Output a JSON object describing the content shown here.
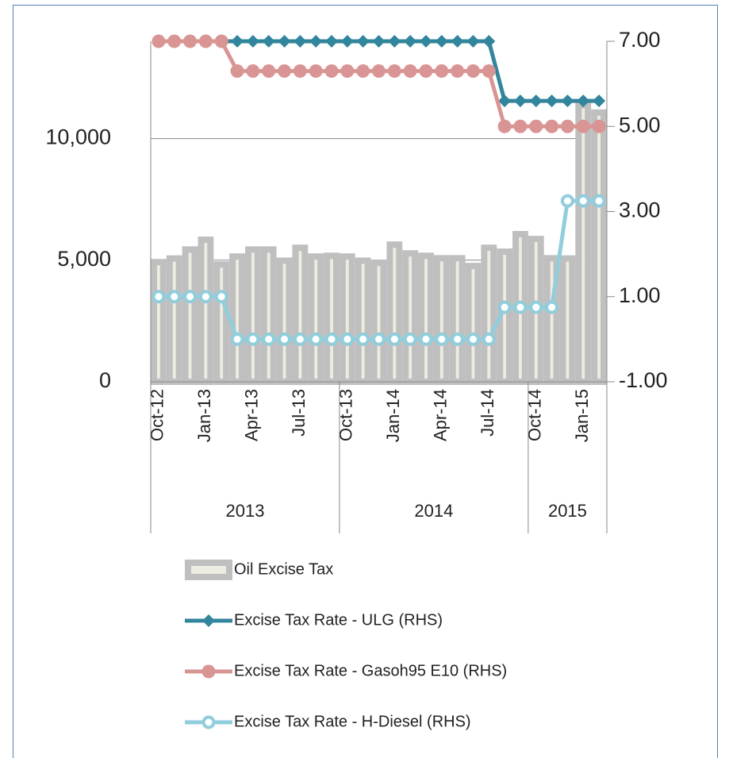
{
  "chart_data": {
    "type": "bar",
    "categories": [
      "Oct-12",
      null,
      null,
      "Jan-13",
      null,
      null,
      "Apr-13",
      null,
      null,
      "Jul-13",
      null,
      null,
      "Oct-13",
      null,
      null,
      "Jan-14",
      null,
      null,
      "Apr-14",
      null,
      null,
      "Jul-14",
      null,
      null,
      "Oct-14",
      null,
      null,
      "Jan-15",
      null
    ],
    "groups": [
      {
        "label": "2013",
        "count": 12
      },
      {
        "label": "2014",
        "count": 12
      },
      {
        "label": "2015",
        "count": 5
      }
    ],
    "series": [
      {
        "name": "Oil Excise Tax",
        "type": "bar",
        "color": "#bfbfbf",
        "fill": "#eeece1",
        "values": [
          5050,
          5200,
          5570,
          5970,
          4950,
          5280,
          5570,
          5570,
          5110,
          5640,
          5280,
          5310,
          5280,
          5110,
          5020,
          5770,
          5410,
          5310,
          5210,
          5210,
          4890,
          5640,
          5480,
          6200,
          6000,
          5210,
          5200,
          11500,
          11200
        ]
      },
      {
        "name": "Excise Tax Rate - ULG (RHS)",
        "type": "line",
        "axis": "y2",
        "color": "#31859c",
        "marker": "diamond",
        "values": [
          7,
          7,
          7,
          7,
          7,
          7,
          7,
          7,
          7,
          7,
          7,
          7,
          7,
          7,
          7,
          7,
          7,
          7,
          7,
          7,
          7,
          7,
          5.6,
          5.6,
          5.6,
          5.6,
          5.6,
          5.6,
          5.6
        ]
      },
      {
        "name": "Excise Tax Rate - Gasoh95 E10 (RHS)",
        "type": "line",
        "axis": "y2",
        "color": "#d99594",
        "marker": "circle",
        "values": [
          7,
          7,
          7,
          7,
          7,
          6.3,
          6.3,
          6.3,
          6.3,
          6.3,
          6.3,
          6.3,
          6.3,
          6.3,
          6.3,
          6.3,
          6.3,
          6.3,
          6.3,
          6.3,
          6.3,
          6.3,
          5.0,
          5.0,
          5.0,
          5.0,
          5.0,
          5.0,
          5.0
        ]
      },
      {
        "name": "Excise Tax Rate - H-Diesel (RHS)",
        "type": "line",
        "axis": "y2",
        "color": "#92cddc",
        "marker": "hollow-circle",
        "values": [
          1.0,
          1.0,
          1.0,
          1.0,
          1.0,
          0,
          0,
          0,
          0,
          0,
          0,
          0,
          0,
          0,
          0,
          0,
          0,
          0,
          0,
          0,
          0,
          0,
          0.75,
          0.75,
          0.75,
          0.75,
          3.25,
          3.25,
          3.25
        ]
      }
    ],
    "ylim": [
      0,
      14000
    ],
    "yticks": [
      0,
      {
        "value": 5000,
        "label": "5,000"
      },
      {
        "value": 10000,
        "label": "10,000"
      }
    ],
    "y2lim": [
      -1,
      7
    ],
    "y2ticks": [
      {
        "value": -1,
        "label": "-1.00"
      },
      {
        "value": 1,
        "label": "1.00"
      },
      {
        "value": 3,
        "label": "3.00"
      },
      {
        "value": 5,
        "label": "5.00"
      },
      {
        "value": 7,
        "label": "7.00"
      }
    ],
    "grid": true
  }
}
